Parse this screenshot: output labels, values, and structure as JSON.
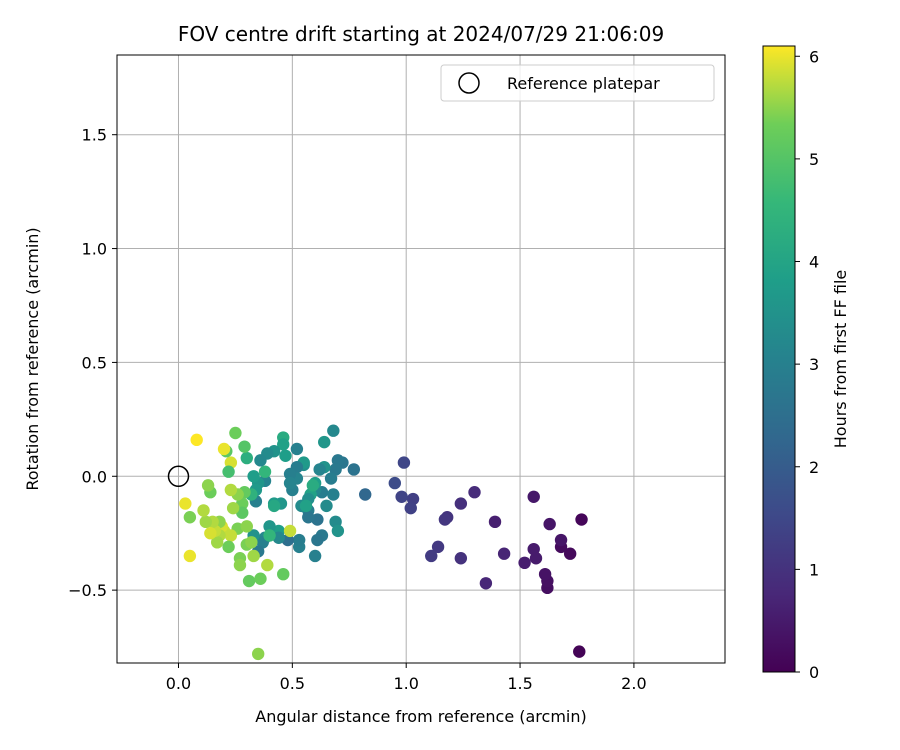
{
  "chart_data": {
    "type": "scatter",
    "title": "FOV centre drift starting at 2024/07/29 21:06:09",
    "xlabel": "Angular distance from reference (arcmin)",
    "ylabel": "Rotation from reference (arcmin)",
    "xlim": [
      -0.27,
      2.4
    ],
    "ylim": [
      -0.82,
      1.85
    ],
    "xticks": [
      0.0,
      0.5,
      1.0,
      1.5,
      2.0
    ],
    "xtick_labels": [
      "0.0",
      "0.5",
      "1.0",
      "1.5",
      "2.0"
    ],
    "yticks": [
      -0.5,
      0.0,
      0.5,
      1.0,
      1.5
    ],
    "ytick_labels": [
      "−0.5",
      "0.0",
      "0.5",
      "1.0",
      "1.5"
    ],
    "grid": true,
    "legend": {
      "position": "top-right",
      "entries": [
        "Reference platepar"
      ]
    },
    "reference_point": {
      "label": "Reference platepar",
      "x": 0.0,
      "y": 0.0,
      "marker": "open-circle"
    },
    "colorbar": {
      "label": "Hours from first FF file",
      "min": 0,
      "max": 6.1,
      "ticks": [
        0,
        1,
        2,
        3,
        4,
        5,
        6
      ],
      "tick_labels": [
        "0",
        "1",
        "2",
        "3",
        "4",
        "5",
        "6"
      ],
      "colormap": "viridis"
    },
    "points": [
      {
        "x": 1.76,
        "y": -0.77,
        "c": 0.05
      },
      {
        "x": 1.77,
        "y": -0.19,
        "c": 0.1
      },
      {
        "x": 1.72,
        "y": -0.34,
        "c": 0.15
      },
      {
        "x": 1.68,
        "y": -0.31,
        "c": 0.2
      },
      {
        "x": 1.62,
        "y": -0.49,
        "c": 0.25
      },
      {
        "x": 1.62,
        "y": -0.46,
        "c": 0.3
      },
      {
        "x": 1.61,
        "y": -0.43,
        "c": 0.35
      },
      {
        "x": 1.63,
        "y": -0.21,
        "c": 0.4
      },
      {
        "x": 1.56,
        "y": -0.09,
        "c": 0.45
      },
      {
        "x": 1.57,
        "y": -0.36,
        "c": 0.5
      },
      {
        "x": 1.52,
        "y": -0.38,
        "c": 0.55
      },
      {
        "x": 1.56,
        "y": -0.32,
        "c": 0.5
      },
      {
        "x": 1.68,
        "y": -0.28,
        "c": 0.4
      },
      {
        "x": 1.39,
        "y": -0.2,
        "c": 0.6
      },
      {
        "x": 1.43,
        "y": -0.34,
        "c": 0.7
      },
      {
        "x": 1.35,
        "y": -0.47,
        "c": 0.75
      },
      {
        "x": 1.3,
        "y": -0.07,
        "c": 0.85
      },
      {
        "x": 1.24,
        "y": -0.12,
        "c": 0.95
      },
      {
        "x": 1.24,
        "y": -0.36,
        "c": 1.0
      },
      {
        "x": 1.18,
        "y": -0.18,
        "c": 1.05
      },
      {
        "x": 1.17,
        "y": -0.19,
        "c": 1.1
      },
      {
        "x": 1.14,
        "y": -0.31,
        "c": 1.15
      },
      {
        "x": 1.11,
        "y": -0.35,
        "c": 1.2
      },
      {
        "x": 1.03,
        "y": -0.1,
        "c": 1.3
      },
      {
        "x": 1.02,
        "y": -0.14,
        "c": 1.35
      },
      {
        "x": 0.98,
        "y": -0.09,
        "c": 1.4
      },
      {
        "x": 0.99,
        "y": 0.06,
        "c": 1.45
      },
      {
        "x": 0.95,
        "y": -0.03,
        "c": 1.6
      },
      {
        "x": 0.82,
        "y": -0.08,
        "c": 2.3
      },
      {
        "x": 0.77,
        "y": 0.03,
        "c": 2.6
      },
      {
        "x": 0.72,
        "y": 0.06,
        "c": 2.7
      },
      {
        "x": 0.7,
        "y": 0.07,
        "c": 2.75
      },
      {
        "x": 0.68,
        "y": 0.2,
        "c": 3.2
      },
      {
        "x": 0.69,
        "y": 0.03,
        "c": 2.8
      },
      {
        "x": 0.67,
        "y": -0.01,
        "c": 2.9
      },
      {
        "x": 0.68,
        "y": -0.08,
        "c": 3.0
      },
      {
        "x": 0.69,
        "y": -0.2,
        "c": 3.3
      },
      {
        "x": 0.7,
        "y": -0.24,
        "c": 3.5
      },
      {
        "x": 0.64,
        "y": 0.15,
        "c": 3.6
      },
      {
        "x": 0.64,
        "y": 0.04,
        "c": 3.5
      },
      {
        "x": 0.62,
        "y": 0.03,
        "c": 3.1
      },
      {
        "x": 0.63,
        "y": -0.07,
        "c": 2.9
      },
      {
        "x": 0.63,
        "y": -0.26,
        "c": 2.8
      },
      {
        "x": 0.61,
        "y": -0.28,
        "c": 2.7
      },
      {
        "x": 0.61,
        "y": -0.19,
        "c": 2.6
      },
      {
        "x": 0.6,
        "y": -0.35,
        "c": 3.0
      },
      {
        "x": 0.6,
        "y": -0.06,
        "c": 3.2
      },
      {
        "x": 0.6,
        "y": -0.03,
        "c": 3.8
      },
      {
        "x": 0.58,
        "y": -0.08,
        "c": 3.9
      },
      {
        "x": 0.57,
        "y": -0.1,
        "c": 3.4
      },
      {
        "x": 0.57,
        "y": -0.15,
        "c": 2.9
      },
      {
        "x": 0.57,
        "y": -0.18,
        "c": 2.7
      },
      {
        "x": 0.55,
        "y": 0.05,
        "c": 3.4
      },
      {
        "x": 0.55,
        "y": 0.06,
        "c": 3.7
      },
      {
        "x": 0.54,
        "y": -0.13,
        "c": 3.3
      },
      {
        "x": 0.53,
        "y": -0.31,
        "c": 3.0
      },
      {
        "x": 0.53,
        "y": -0.28,
        "c": 2.9
      },
      {
        "x": 0.52,
        "y": 0.04,
        "c": 2.9
      },
      {
        "x": 0.52,
        "y": -0.01,
        "c": 3.1
      },
      {
        "x": 0.52,
        "y": 0.12,
        "c": 3.0
      },
      {
        "x": 0.5,
        "y": -0.06,
        "c": 3.0
      },
      {
        "x": 0.49,
        "y": 0.01,
        "c": 2.95
      },
      {
        "x": 0.49,
        "y": -0.03,
        "c": 3.1
      },
      {
        "x": 0.48,
        "y": -0.28,
        "c": 2.5
      },
      {
        "x": 0.47,
        "y": 0.09,
        "c": 3.8
      },
      {
        "x": 0.46,
        "y": 0.17,
        "c": 4.2
      },
      {
        "x": 0.46,
        "y": 0.14,
        "c": 3.9
      },
      {
        "x": 0.45,
        "y": -0.12,
        "c": 3.6
      },
      {
        "x": 0.44,
        "y": -0.24,
        "c": 3.8
      },
      {
        "x": 0.44,
        "y": -0.27,
        "c": 3.2
      },
      {
        "x": 0.42,
        "y": -0.12,
        "c": 3.7
      },
      {
        "x": 0.42,
        "y": -0.13,
        "c": 4.1
      },
      {
        "x": 0.42,
        "y": 0.11,
        "c": 3.5
      },
      {
        "x": 0.4,
        "y": -0.22,
        "c": 3.6
      },
      {
        "x": 0.39,
        "y": 0.1,
        "c": 3.3
      },
      {
        "x": 0.38,
        "y": -0.27,
        "c": 3.2
      },
      {
        "x": 0.38,
        "y": -0.02,
        "c": 3.1
      },
      {
        "x": 0.38,
        "y": 0.02,
        "c": 4.5
      },
      {
        "x": 0.37,
        "y": -0.29,
        "c": 3.0
      },
      {
        "x": 0.36,
        "y": 0.07,
        "c": 3.2
      },
      {
        "x": 0.35,
        "y": -0.03,
        "c": 3.6
      },
      {
        "x": 0.35,
        "y": -0.33,
        "c": 2.8
      },
      {
        "x": 0.34,
        "y": -0.11,
        "c": 3.0
      },
      {
        "x": 0.34,
        "y": -0.06,
        "c": 3.7
      },
      {
        "x": 0.33,
        "y": -0.26,
        "c": 3.5
      },
      {
        "x": 0.33,
        "y": 0.0,
        "c": 3.8
      },
      {
        "x": 0.32,
        "y": -0.08,
        "c": 4.4
      },
      {
        "x": 0.3,
        "y": 0.08,
        "c": 4.3
      },
      {
        "x": 0.29,
        "y": 0.13,
        "c": 5.0
      },
      {
        "x": 0.29,
        "y": -0.07,
        "c": 5.2
      },
      {
        "x": 0.28,
        "y": -0.12,
        "c": 5.3
      },
      {
        "x": 0.28,
        "y": -0.16,
        "c": 5.1
      },
      {
        "x": 0.27,
        "y": -0.36,
        "c": 5.4
      },
      {
        "x": 0.27,
        "y": -0.39,
        "c": 5.5
      },
      {
        "x": 0.26,
        "y": -0.23,
        "c": 5.4
      },
      {
        "x": 0.26,
        "y": -0.08,
        "c": 5.5
      },
      {
        "x": 0.25,
        "y": 0.19,
        "c": 5.3
      },
      {
        "x": 0.24,
        "y": -0.14,
        "c": 5.6
      },
      {
        "x": 0.23,
        "y": -0.06,
        "c": 5.7
      },
      {
        "x": 0.23,
        "y": 0.06,
        "c": 5.9
      },
      {
        "x": 0.23,
        "y": -0.26,
        "c": 5.8
      },
      {
        "x": 0.22,
        "y": -0.31,
        "c": 5.3
      },
      {
        "x": 0.22,
        "y": 0.02,
        "c": 4.8
      },
      {
        "x": 0.21,
        "y": 0.11,
        "c": 5.1
      },
      {
        "x": 0.2,
        "y": 0.12,
        "c": 6.0
      },
      {
        "x": 0.2,
        "y": -0.24,
        "c": 5.8
      },
      {
        "x": 0.19,
        "y": -0.22,
        "c": 5.9
      },
      {
        "x": 0.18,
        "y": -0.2,
        "c": 5.5
      },
      {
        "x": 0.18,
        "y": -0.26,
        "c": 5.7
      },
      {
        "x": 0.17,
        "y": -0.29,
        "c": 5.6
      },
      {
        "x": 0.16,
        "y": -0.24,
        "c": 5.8
      },
      {
        "x": 0.15,
        "y": -0.2,
        "c": 5.7
      },
      {
        "x": 0.14,
        "y": -0.25,
        "c": 5.9
      },
      {
        "x": 0.14,
        "y": -0.07,
        "c": 5.3
      },
      {
        "x": 0.13,
        "y": -0.04,
        "c": 5.5
      },
      {
        "x": 0.12,
        "y": -0.2,
        "c": 5.6
      },
      {
        "x": 0.11,
        "y": -0.15,
        "c": 5.7
      },
      {
        "x": 0.08,
        "y": 0.16,
        "c": 6.1
      },
      {
        "x": 0.05,
        "y": -0.18,
        "c": 5.4
      },
      {
        "x": 0.05,
        "y": -0.35,
        "c": 6.0
      },
      {
        "x": 0.03,
        "y": -0.12,
        "c": 6.0
      },
      {
        "x": 0.3,
        "y": -0.22,
        "c": 5.5
      },
      {
        "x": 0.31,
        "y": -0.46,
        "c": 5.2
      },
      {
        "x": 0.33,
        "y": -0.35,
        "c": 5.6
      },
      {
        "x": 0.36,
        "y": -0.45,
        "c": 5.3
      },
      {
        "x": 0.35,
        "y": -0.78,
        "c": 5.5
      },
      {
        "x": 0.39,
        "y": -0.39,
        "c": 5.7
      },
      {
        "x": 0.46,
        "y": -0.43,
        "c": 5.2
      },
      {
        "x": 0.49,
        "y": -0.24,
        "c": 5.8
      },
      {
        "x": 0.3,
        "y": -0.3,
        "c": 5.4
      },
      {
        "x": 0.32,
        "y": -0.29,
        "c": 5.5
      },
      {
        "x": 0.4,
        "y": -0.26,
        "c": 4.5
      },
      {
        "x": 0.56,
        "y": -0.13,
        "c": 3.9
      },
      {
        "x": 0.65,
        "y": -0.13,
        "c": 3.3
      },
      {
        "x": 0.59,
        "y": -0.04,
        "c": 4.2
      }
    ]
  }
}
